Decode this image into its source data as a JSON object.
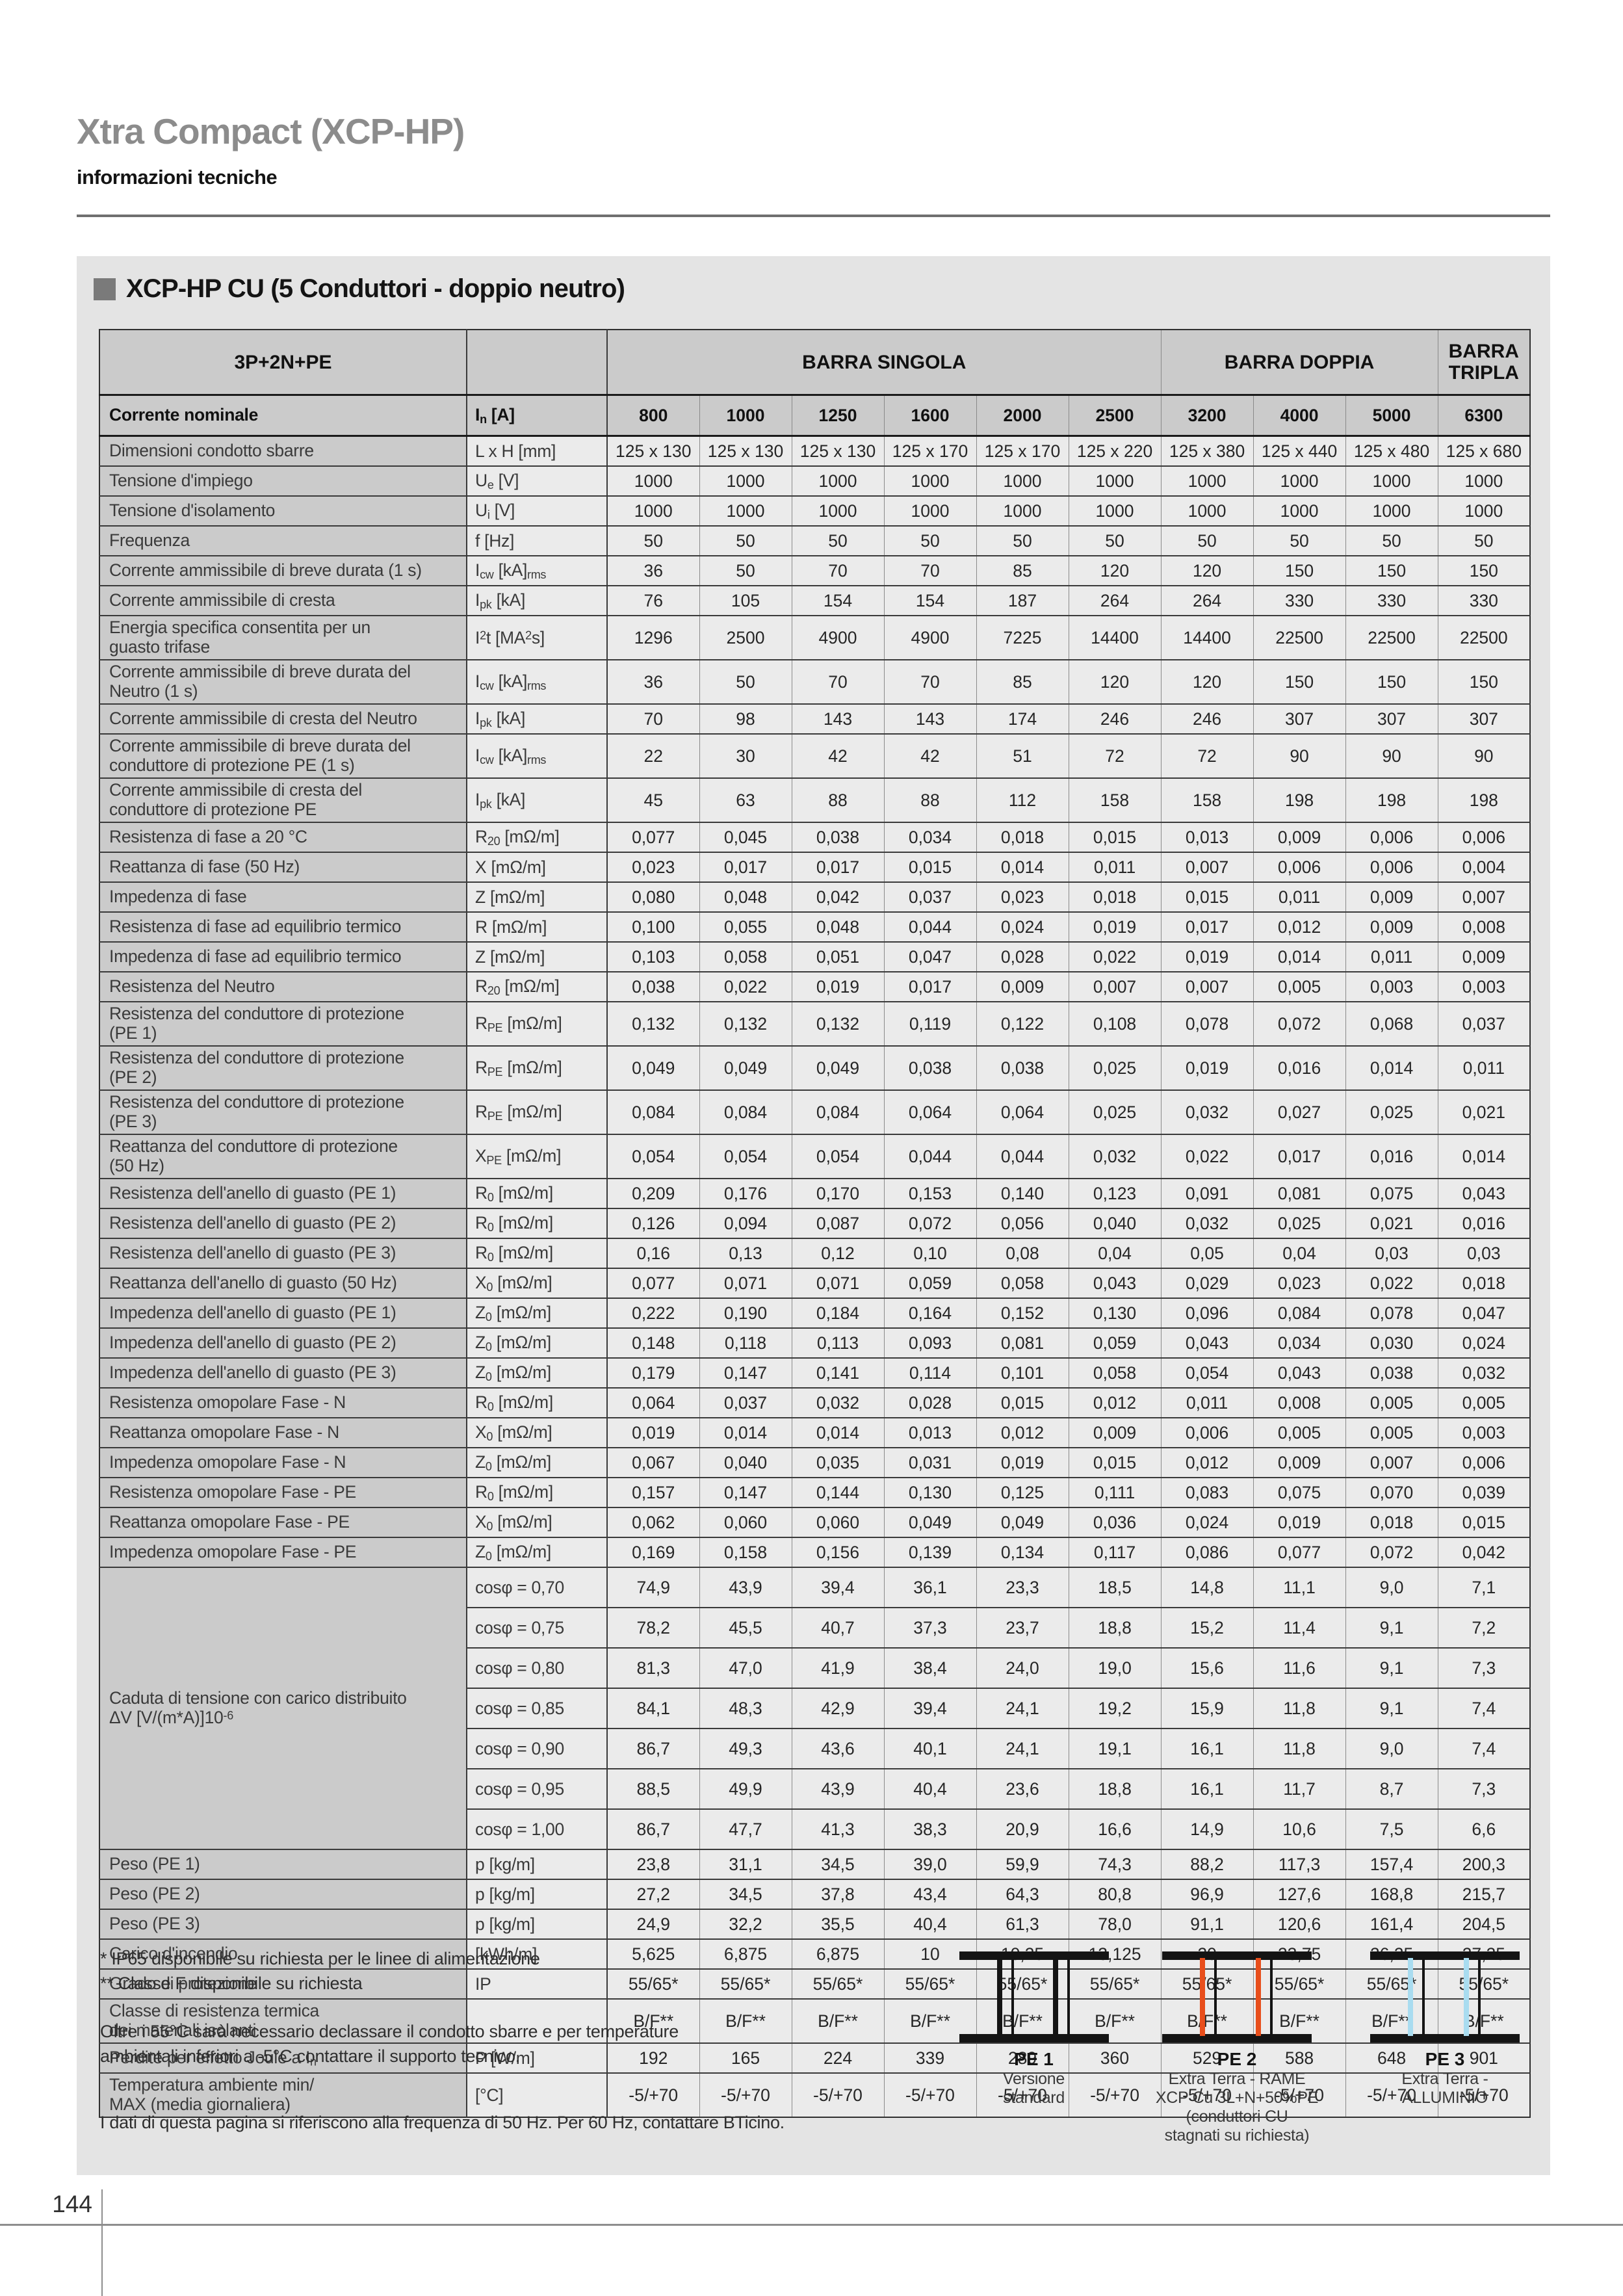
{
  "page": {
    "number": "144"
  },
  "header": {
    "title": "Xtra Compact (XCP-HP)",
    "subtitle": "informazioni tecniche"
  },
  "section": {
    "title": "XCP-HP CU (5 Conduttori - doppio neutro)"
  },
  "table": {
    "corner_label": "3P+2N+PE",
    "groups": [
      {
        "label": "BARRA SINGOLA",
        "span": 6
      },
      {
        "label": "BARRA DOPPIA",
        "span": 3
      },
      {
        "label": "BARRA TRIPLA",
        "span": 1
      }
    ],
    "group_label": [
      "Caduta di tensione con carico distribuito",
      "ΔV [V/(m*A)]10^-6^"
    ],
    "rows": [
      {
        "h": "n",
        "label": "Corrente nominale",
        "u": "I~n~ [A]",
        "v": [
          "800",
          "1000",
          "1250",
          "1600",
          "2000",
          "2500",
          "3200",
          "4000",
          "5000",
          "6300"
        ]
      },
      {
        "h": "s",
        "label": "Dimensioni condotto sbarre",
        "u": "L x H [mm]",
        "v": [
          "125 x 130",
          "125 x 130",
          "125 x 130",
          "125 x 170",
          "125 x 170",
          "125 x 220",
          "125 x 380",
          "125 x 440",
          "125 x 480",
          "125 x 680"
        ]
      },
      {
        "h": "s",
        "label": "Tensione d'impiego",
        "u": "U~e~ [V]",
        "v": [
          "1000",
          "1000",
          "1000",
          "1000",
          "1000",
          "1000",
          "1000",
          "1000",
          "1000",
          "1000"
        ]
      },
      {
        "h": "s",
        "label": "Tensione d'isolamento",
        "u": "U~i~ [V]",
        "v": [
          "1000",
          "1000",
          "1000",
          "1000",
          "1000",
          "1000",
          "1000",
          "1000",
          "1000",
          "1000"
        ]
      },
      {
        "h": "s",
        "label": "Frequenza",
        "u": "f [Hz]",
        "v": [
          "50",
          "50",
          "50",
          "50",
          "50",
          "50",
          "50",
          "50",
          "50",
          "50"
        ]
      },
      {
        "h": "s",
        "label": "Corrente ammissibile di breve durata (1 s)",
        "u": "I~cw~ [kA]~rms~",
        "v": [
          "36",
          "50",
          "70",
          "70",
          "85",
          "120",
          "120",
          "150",
          "150",
          "150"
        ]
      },
      {
        "h": "s",
        "label": "Corrente ammissibile di cresta",
        "u": "I~pk~ [kA]",
        "v": [
          "76",
          "105",
          "154",
          "154",
          "187",
          "264",
          "264",
          "330",
          "330",
          "330"
        ]
      },
      {
        "h": "d",
        "label": "Energia specifica consentita per un\nguasto trifase",
        "u": "I^2^t [MA^2^s]",
        "v": [
          "1296",
          "2500",
          "4900",
          "4900",
          "7225",
          "14400",
          "14400",
          "22500",
          "22500",
          "22500"
        ]
      },
      {
        "h": "d",
        "label": "Corrente ammissibile di breve durata del\nNeutro (1 s)",
        "u": "I~cw~ [kA]~rms~",
        "v": [
          "36",
          "50",
          "70",
          "70",
          "85",
          "120",
          "120",
          "150",
          "150",
          "150"
        ]
      },
      {
        "h": "s",
        "label": "Corrente ammissibile di cresta del Neutro",
        "u": "I~pk~ [kA]",
        "v": [
          "70",
          "98",
          "143",
          "143",
          "174",
          "246",
          "246",
          "307",
          "307",
          "307"
        ]
      },
      {
        "h": "d",
        "label": "Corrente ammissibile di breve durata del\nconduttore di protezione PE (1 s)",
        "u": "I~cw~ [kA]~rms~",
        "v": [
          "22",
          "30",
          "42",
          "42",
          "51",
          "72",
          "72",
          "90",
          "90",
          "90"
        ]
      },
      {
        "h": "d",
        "label": "Corrente ammissibile di cresta del\nconduttore di protezione PE",
        "u": "I~pk~ [kA]",
        "v": [
          "45",
          "63",
          "88",
          "88",
          "112",
          "158",
          "158",
          "198",
          "198",
          "198"
        ]
      },
      {
        "h": "s",
        "label": "Resistenza di fase a 20 °C",
        "u": "R~20~ [mΩ/m]",
        "v": [
          "0,077",
          "0,045",
          "0,038",
          "0,034",
          "0,018",
          "0,015",
          "0,013",
          "0,009",
          "0,006",
          "0,006"
        ]
      },
      {
        "h": "s",
        "label": "Reattanza di fase (50 Hz)",
        "u": "X [mΩ/m]",
        "v": [
          "0,023",
          "0,017",
          "0,017",
          "0,015",
          "0,014",
          "0,011",
          "0,007",
          "0,006",
          "0,006",
          "0,004"
        ]
      },
      {
        "h": "s",
        "label": "Impedenza di fase",
        "u": "Z [mΩ/m]",
        "v": [
          "0,080",
          "0,048",
          "0,042",
          "0,037",
          "0,023",
          "0,018",
          "0,015",
          "0,011",
          "0,009",
          "0,007"
        ]
      },
      {
        "h": "s",
        "label": "Resistenza di fase ad equilibrio termico",
        "u": "R [mΩ/m]",
        "v": [
          "0,100",
          "0,055",
          "0,048",
          "0,044",
          "0,024",
          "0,019",
          "0,017",
          "0,012",
          "0,009",
          "0,008"
        ]
      },
      {
        "h": "s",
        "label": "Impedenza di fase ad equilibrio termico",
        "u": "Z [mΩ/m]",
        "v": [
          "0,103",
          "0,058",
          "0,051",
          "0,047",
          "0,028",
          "0,022",
          "0,019",
          "0,014",
          "0,011",
          "0,009"
        ]
      },
      {
        "h": "s",
        "label": "Resistenza del Neutro",
        "u": "R~20~ [mΩ/m]",
        "v": [
          "0,038",
          "0,022",
          "0,019",
          "0,017",
          "0,009",
          "0,007",
          "0,007",
          "0,005",
          "0,003",
          "0,003"
        ]
      },
      {
        "h": "d",
        "label": "Resistenza del conduttore di protezione\n(PE 1)",
        "u": "R~PE~ [mΩ/m]",
        "v": [
          "0,132",
          "0,132",
          "0,132",
          "0,119",
          "0,122",
          "0,108",
          "0,078",
          "0,072",
          "0,068",
          "0,037"
        ]
      },
      {
        "h": "d",
        "label": "Resistenza del conduttore di protezione\n(PE 2)",
        "u": "R~PE~ [mΩ/m]",
        "v": [
          "0,049",
          "0,049",
          "0,049",
          "0,038",
          "0,038",
          "0,025",
          "0,019",
          "0,016",
          "0,014",
          "0,011"
        ]
      },
      {
        "h": "d",
        "label": "Resistenza del conduttore di protezione\n(PE 3)",
        "u": "R~PE~ [mΩ/m]",
        "v": [
          "0,084",
          "0,084",
          "0,084",
          "0,064",
          "0,064",
          "0,025",
          "0,032",
          "0,027",
          "0,025",
          "0,021"
        ]
      },
      {
        "h": "d",
        "label": "Reattanza del conduttore di protezione\n(50 Hz)",
        "u": "X~PE~ [mΩ/m]",
        "v": [
          "0,054",
          "0,054",
          "0,054",
          "0,044",
          "0,044",
          "0,032",
          "0,022",
          "0,017",
          "0,016",
          "0,014"
        ]
      },
      {
        "h": "s",
        "label": "Resistenza dell'anello di guasto (PE 1)",
        "u": "R~0~ [mΩ/m]",
        "v": [
          "0,209",
          "0,176",
          "0,170",
          "0,153",
          "0,140",
          "0,123",
          "0,091",
          "0,081",
          "0,075",
          "0,043"
        ]
      },
      {
        "h": "s",
        "label": "Resistenza dell'anello di guasto (PE 2)",
        "u": "R~0~ [mΩ/m]",
        "v": [
          "0,126",
          "0,094",
          "0,087",
          "0,072",
          "0,056",
          "0,040",
          "0,032",
          "0,025",
          "0,021",
          "0,016"
        ]
      },
      {
        "h": "s",
        "label": "Resistenza dell'anello di guasto (PE 3)",
        "u": "R~0~ [mΩ/m]",
        "v": [
          "0,16",
          "0,13",
          "0,12",
          "0,10",
          "0,08",
          "0,04",
          "0,05",
          "0,04",
          "0,03",
          "0,03"
        ]
      },
      {
        "h": "s",
        "label": "Reattanza dell'anello di guasto (50 Hz)",
        "u": "X~0~ [mΩ/m]",
        "v": [
          "0,077",
          "0,071",
          "0,071",
          "0,059",
          "0,058",
          "0,043",
          "0,029",
          "0,023",
          "0,022",
          "0,018"
        ]
      },
      {
        "h": "s",
        "label": "Impedenza dell'anello di guasto (PE 1)",
        "u": "Z~0~ [mΩ/m]",
        "v": [
          "0,222",
          "0,190",
          "0,184",
          "0,164",
          "0,152",
          "0,130",
          "0,096",
          "0,084",
          "0,078",
          "0,047"
        ]
      },
      {
        "h": "s",
        "label": "Impedenza dell'anello di guasto (PE 2)",
        "u": "Z~0~ [mΩ/m]",
        "v": [
          "0,148",
          "0,118",
          "0,113",
          "0,093",
          "0,081",
          "0,059",
          "0,043",
          "0,034",
          "0,030",
          "0,024"
        ]
      },
      {
        "h": "s",
        "label": "Impedenza dell'anello di guasto (PE 3)",
        "u": "Z~0~ [mΩ/m]",
        "v": [
          "0,179",
          "0,147",
          "0,141",
          "0,114",
          "0,101",
          "0,058",
          "0,054",
          "0,043",
          "0,038",
          "0,032"
        ]
      },
      {
        "h": "s",
        "label": "Resistenza omopolare Fase - N",
        "u": "R~0~ [mΩ/m]",
        "v": [
          "0,064",
          "0,037",
          "0,032",
          "0,028",
          "0,015",
          "0,012",
          "0,011",
          "0,008",
          "0,005",
          "0,005"
        ]
      },
      {
        "h": "s",
        "label": "Reattanza omopolare Fase - N",
        "u": "X~0~ [mΩ/m]",
        "v": [
          "0,019",
          "0,014",
          "0,014",
          "0,013",
          "0,012",
          "0,009",
          "0,006",
          "0,005",
          "0,005",
          "0,003"
        ]
      },
      {
        "h": "s",
        "label": "Impedenza omopolare Fase - N",
        "u": "Z~0~ [mΩ/m]",
        "v": [
          "0,067",
          "0,040",
          "0,035",
          "0,031",
          "0,019",
          "0,015",
          "0,012",
          "0,009",
          "0,007",
          "0,006"
        ]
      },
      {
        "h": "s",
        "label": "Resistenza omopolare Fase - PE",
        "u": "R~0~ [mΩ/m]",
        "v": [
          "0,157",
          "0,147",
          "0,144",
          "0,130",
          "0,125",
          "0,111",
          "0,083",
          "0,075",
          "0,070",
          "0,039"
        ]
      },
      {
        "h": "s",
        "label": "Reattanza omopolare Fase - PE",
        "u": "X~0~ [mΩ/m]",
        "v": [
          "0,062",
          "0,060",
          "0,060",
          "0,049",
          "0,049",
          "0,036",
          "0,024",
          "0,019",
          "0,018",
          "0,015"
        ]
      },
      {
        "h": "s",
        "label": "Impedenza omopolare Fase - PE",
        "u": "Z~0~ [mΩ/m]",
        "v": [
          "0,169",
          "0,158",
          "0,156",
          "0,139",
          "0,134",
          "0,117",
          "0,086",
          "0,077",
          "0,072",
          "0,042"
        ]
      },
      {
        "h": "c",
        "group": true,
        "u": "cosφ = 0,70",
        "v": [
          "74,9",
          "43,9",
          "39,4",
          "36,1",
          "23,3",
          "18,5",
          "14,8",
          "11,1",
          "9,0",
          "7,1"
        ]
      },
      {
        "h": "c",
        "u": "cosφ = 0,75",
        "v": [
          "78,2",
          "45,5",
          "40,7",
          "37,3",
          "23,7",
          "18,8",
          "15,2",
          "11,4",
          "9,1",
          "7,2"
        ]
      },
      {
        "h": "c",
        "u": "cosφ = 0,80",
        "v": [
          "81,3",
          "47,0",
          "41,9",
          "38,4",
          "24,0",
          "19,0",
          "15,6",
          "11,6",
          "9,1",
          "7,3"
        ]
      },
      {
        "h": "c",
        "u": "cosφ = 0,85",
        "v": [
          "84,1",
          "48,3",
          "42,9",
          "39,4",
          "24,1",
          "19,2",
          "15,9",
          "11,8",
          "9,1",
          "7,4"
        ]
      },
      {
        "h": "c",
        "u": "cosφ = 0,90",
        "v": [
          "86,7",
          "49,3",
          "43,6",
          "40,1",
          "24,1",
          "19,1",
          "16,1",
          "11,8",
          "9,0",
          "7,4"
        ]
      },
      {
        "h": "c",
        "u": "cosφ = 0,95",
        "v": [
          "88,5",
          "49,9",
          "43,9",
          "40,4",
          "23,6",
          "18,8",
          "16,1",
          "11,7",
          "8,7",
          "7,3"
        ]
      },
      {
        "h": "c",
        "u": "cosφ = 1,00",
        "v": [
          "86,7",
          "47,7",
          "41,3",
          "38,3",
          "20,9",
          "16,6",
          "14,9",
          "10,6",
          "7,5",
          "6,6"
        ]
      },
      {
        "h": "s",
        "label": "Peso (PE 1)",
        "u": "p [kg/m]",
        "v": [
          "23,8",
          "31,1",
          "34,5",
          "39,0",
          "59,9",
          "74,3",
          "88,2",
          "117,3",
          "157,4",
          "200,3"
        ]
      },
      {
        "h": "s",
        "label": "Peso (PE 2)",
        "u": "p [kg/m]",
        "v": [
          "27,2",
          "34,5",
          "37,8",
          "43,4",
          "64,3",
          "80,8",
          "96,9",
          "127,6",
          "168,8",
          "215,7"
        ]
      },
      {
        "h": "s",
        "label": "Peso (PE 3)",
        "u": "p [kg/m]",
        "v": [
          "24,9",
          "32,2",
          "35,5",
          "40,4",
          "61,3",
          "78,0",
          "91,1",
          "120,6",
          "161,4",
          "204,5"
        ]
      },
      {
        "h": "s",
        "label": "Carico d'incendio",
        "u": "[kWh/m]",
        "v": [
          "5,625",
          "6,875",
          "6,875",
          "10",
          "10,25",
          "13,125",
          "20",
          "23,75",
          "26,25",
          "27,25"
        ]
      },
      {
        "h": "s",
        "label": "Grado di protezione",
        "u": "IP",
        "v": [
          "55/65*",
          "55/65*",
          "55/65*",
          "55/65*",
          "55/65*",
          "55/65*",
          "55/65*",
          "55/65*",
          "55/65*",
          "55/65*"
        ]
      },
      {
        "h": "d",
        "label": "Classe di resistenza termica\ndei materiali isolanti",
        "u": "",
        "v": [
          "B/F**",
          "B/F**",
          "B/F**",
          "B/F**",
          "B/F**",
          "B/F**",
          "B/F**",
          "B/F**",
          "B/F**",
          "B/F**"
        ]
      },
      {
        "h": "s",
        "label": "Perdite per effetto Joule a I~n~",
        "u": "P [W/m]",
        "v": [
          "192",
          "165",
          "224",
          "339",
          "289",
          "360",
          "529",
          "588",
          "648",
          "901"
        ]
      },
      {
        "h": "d",
        "label": "Temperatura ambiente min/\nMAX (media giornaliera)",
        "u": "[°C]",
        "v": [
          "-5/+70",
          "-5/+70",
          "-5/+70",
          "-5/+70",
          "-5/+70",
          "-5/+70",
          "-5/+70",
          "-5/+70",
          "-5/+70",
          "-5/+70"
        ]
      }
    ]
  },
  "footnotes": [
    "* IP65 disponibile su richiesta per le linee di alimentazione",
    "** Classe F disponibile su richiesta"
  ],
  "notes": [
    "Oltre i 55°C sarà necessario declassare il condotto sbarre e per temperature\nambientali inferiori a -5°C contattare il supporto tecnico.",
    "I dati di questa pagina si riferiscono alla frequenza di 50 Hz. Per 60 Hz, contattare BTicino."
  ],
  "legend": [
    {
      "code": "PE 1",
      "lines": [
        "Versione",
        "standard"
      ],
      "web_color": "#141414"
    },
    {
      "code": "PE 2",
      "lines": [
        "Extra Terra - RAME",
        "XCP Cu 3L+N+50%PE",
        "(conduttori CU",
        "stagnati su richiesta)"
      ],
      "web_color": "#E84E1B"
    },
    {
      "code": "PE 3",
      "lines": [
        "Extra Terra -",
        "ALLUMINIO"
      ],
      "web_color": "#A9DCF0"
    }
  ]
}
